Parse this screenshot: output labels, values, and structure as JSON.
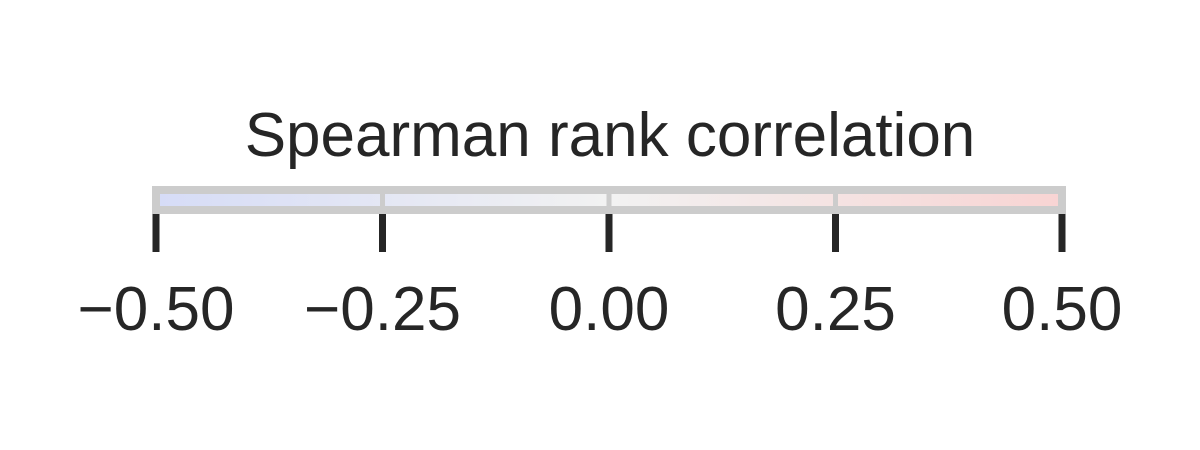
{
  "chart_data": {
    "type": "colorbar",
    "title": "Spearman rank correlation",
    "orientation": "horizontal",
    "range": [
      -0.5,
      0.5
    ],
    "ticks": [
      -0.5,
      -0.25,
      0.0,
      0.25,
      0.5
    ],
    "tick_labels": [
      "−0.50",
      "−0.25",
      "0.00",
      "0.25",
      "0.50"
    ],
    "colormap": "coolwarm (faded)",
    "colors": {
      "low": "#d6dcf7",
      "mid": "#f2f2f2",
      "high": "#f8d4d3",
      "frame": "#cccccc",
      "ticks": "#262626",
      "text": "#262626"
    }
  }
}
